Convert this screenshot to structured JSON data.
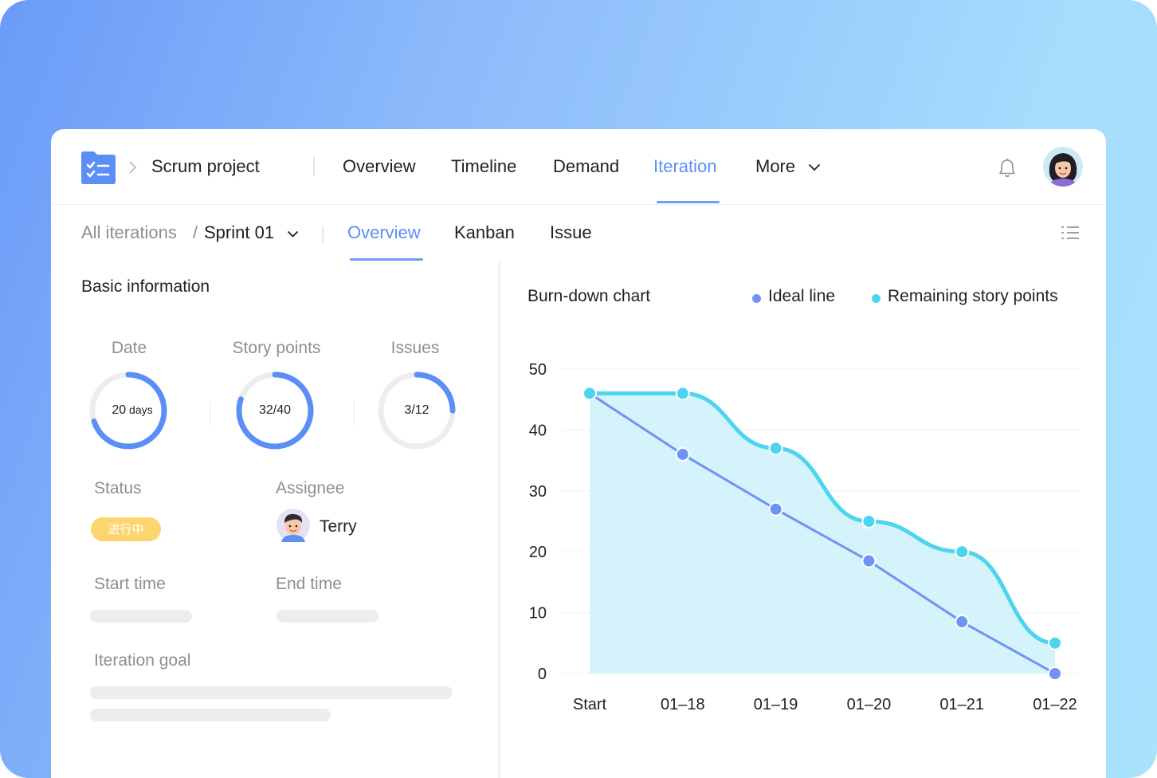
{
  "header": {
    "project_name": "Scrum project",
    "nav": [
      {
        "label": "Overview",
        "active": false
      },
      {
        "label": "Timeline",
        "active": false
      },
      {
        "label": "Demand",
        "active": false
      },
      {
        "label": "Iteration",
        "active": true
      },
      {
        "label": "More",
        "active": false
      }
    ],
    "icons": {
      "project": "checklist-folder-icon",
      "notifications": "bell-icon",
      "more": "chevron-down-icon"
    }
  },
  "subnav": {
    "all_iterations": "All iterations",
    "separator": "/",
    "current_sprint": "Sprint 01",
    "tabs": [
      {
        "label": "Overview",
        "active": true
      },
      {
        "label": "Kanban",
        "active": false
      },
      {
        "label": "Issue",
        "active": false
      }
    ],
    "icons": {
      "view_toggle": "list-icon"
    }
  },
  "basic_info": {
    "title": "Basic information",
    "stats": [
      {
        "label": "Date",
        "value_main": "20",
        "value_unit": " days",
        "progress": 0.7
      },
      {
        "label": "Story points",
        "value_main": "32/40",
        "value_unit": "",
        "progress": 0.8
      },
      {
        "label": "Issues",
        "value_main": "3/12",
        "value_unit": "",
        "progress": 0.25
      }
    ],
    "status_label": "Status",
    "status_value": "进行中",
    "assignee_label": "Assignee",
    "assignee_name": "Terry",
    "start_time_label": "Start time",
    "end_time_label": "End time",
    "goal_label": "Iteration goal"
  },
  "colors": {
    "accent": "#5b8ff5",
    "ideal": "#6e93f5",
    "remaining": "#4dd4ee",
    "area_fill": "#d4f3fb",
    "status": "#fdd56f",
    "ring_track": "#ededef"
  },
  "chart_data": {
    "type": "line",
    "title": "Burn-down chart",
    "categories": [
      "Start",
      "01-18",
      "01-19",
      "01-20",
      "01-21",
      "01-22"
    ],
    "x_tick_labels": [
      "Start",
      "01–18",
      "01–19",
      "01–20",
      "01–21",
      "01–22"
    ],
    "series": [
      {
        "name": "Ideal line",
        "values": [
          46,
          36,
          27,
          18.5,
          8.5,
          0
        ],
        "color": "#6e93f5"
      },
      {
        "name": "Remaining story points",
        "values": [
          46,
          46,
          37,
          25,
          20,
          5
        ],
        "color": "#4dd4ee",
        "area": true
      }
    ],
    "ylim": [
      0,
      50
    ],
    "yticks": [
      0,
      10,
      20,
      30,
      40,
      50
    ],
    "grid": true,
    "legend": "top-right"
  }
}
